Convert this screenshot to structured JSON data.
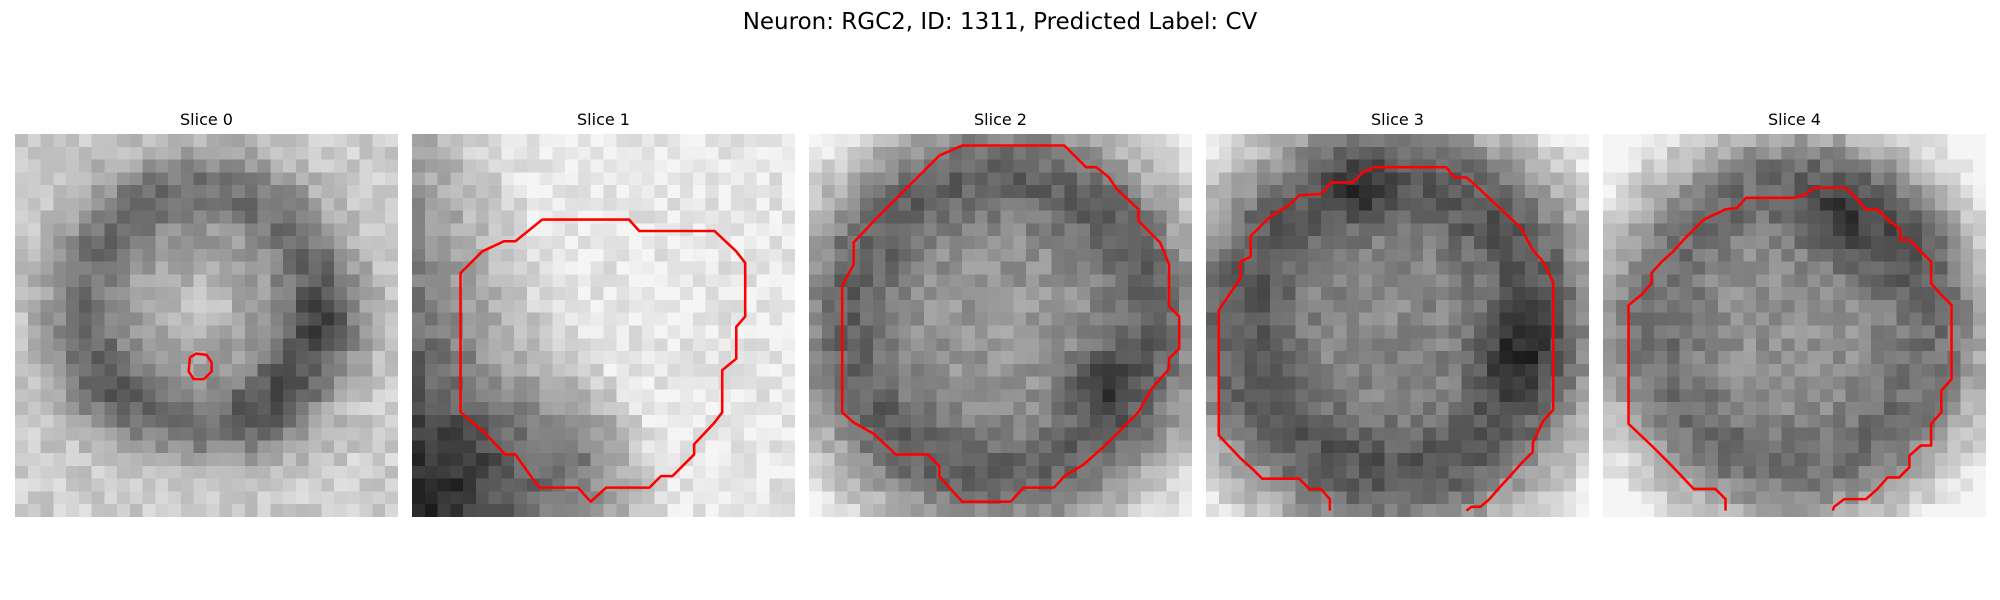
{
  "figure": {
    "title": "Neuron: RGC2, ID: 1311, Predicted Label: CV"
  },
  "panels": [
    {
      "title": "Slice 0"
    },
    {
      "title": "Slice 1"
    },
    {
      "title": "Slice 2"
    },
    {
      "title": "Slice 3"
    },
    {
      "title": "Slice 4"
    }
  ],
  "contour_color": "#ff0000",
  "colormap": "grayscale"
}
